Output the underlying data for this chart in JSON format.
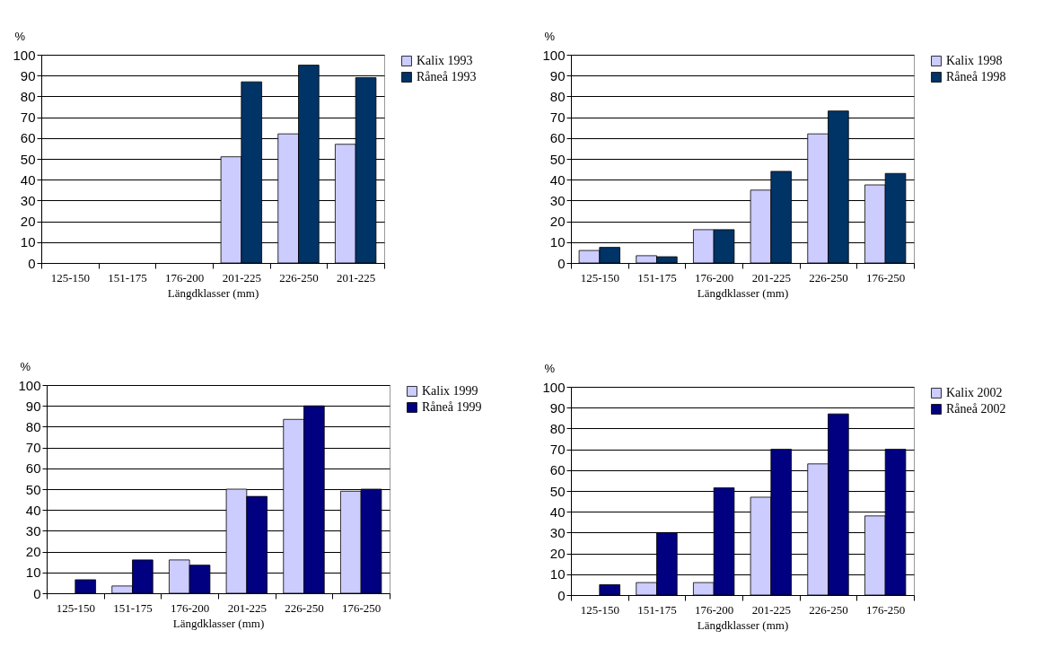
{
  "chart_data": [
    {
      "type": "bar",
      "ylabel": "%",
      "xlabel": "Längdklasser (mm)",
      "categories": [
        "125-150",
        "151-175",
        "176-200",
        "201-225",
        "226-250",
        "201-225"
      ],
      "ylim": [
        0,
        100
      ],
      "yticks": [
        0,
        10,
        20,
        30,
        40,
        50,
        60,
        70,
        80,
        90,
        100
      ],
      "grid": "y",
      "legend": "right",
      "series": [
        {
          "name": "Kalix 1993",
          "color": "#ccccff",
          "values": [
            0,
            0,
            0,
            51,
            62,
            57
          ]
        },
        {
          "name": "Råneå 1993",
          "color": "#003366",
          "values": [
            0,
            0,
            0,
            87,
            95,
            89
          ]
        }
      ]
    },
    {
      "type": "bar",
      "ylabel": "%",
      "xlabel": "Längdklasser (mm)",
      "categories": [
        "125-150",
        "151-175",
        "176-200",
        "201-225",
        "226-250",
        "176-250"
      ],
      "ylim": [
        0,
        100
      ],
      "yticks": [
        0,
        10,
        20,
        30,
        40,
        50,
        60,
        70,
        80,
        90,
        100
      ],
      "grid": "y",
      "legend": "right",
      "series": [
        {
          "name": "Kalix 1998",
          "color": "#ccccff",
          "values": [
            6,
            3.5,
            16,
            35,
            62,
            37.5
          ]
        },
        {
          "name": "Råneå 1998",
          "color": "#003366",
          "values": [
            7.5,
            3,
            16,
            44,
            73,
            43
          ]
        }
      ]
    },
    {
      "type": "bar",
      "ylabel": "%",
      "xlabel": "Längdklasser (mm)",
      "categories": [
        "125-150",
        "151-175",
        "176-200",
        "201-225",
        "226-250",
        "176-250"
      ],
      "ylim": [
        0,
        100
      ],
      "yticks": [
        0,
        10,
        20,
        30,
        40,
        50,
        60,
        70,
        80,
        90,
        100
      ],
      "grid": "y",
      "legend": "right",
      "series": [
        {
          "name": "Kalix 1999",
          "color": "#ccccff",
          "values": [
            0,
            3.5,
            16,
            50,
            83.5,
            49
          ]
        },
        {
          "name": "Råneå 1999",
          "color": "#000080",
          "values": [
            6.5,
            16,
            13.5,
            46.5,
            90,
            50
          ]
        }
      ]
    },
    {
      "type": "bar",
      "ylabel": "%",
      "xlabel": "Längdklasser (mm)",
      "categories": [
        "125-150",
        "151-175",
        "176-200",
        "201-225",
        "226-250",
        "176-250"
      ],
      "ylim": [
        0,
        100
      ],
      "yticks": [
        0,
        10,
        20,
        30,
        40,
        50,
        60,
        70,
        80,
        90,
        100
      ],
      "grid": "y",
      "legend": "right",
      "series": [
        {
          "name": "Kalix 2002",
          "color": "#ccccff",
          "values": [
            0,
            6,
            6,
            47,
            63,
            38
          ]
        },
        {
          "name": "Råneå 2002",
          "color": "#000080",
          "values": [
            5,
            30,
            51.5,
            70,
            87,
            70
          ]
        }
      ]
    }
  ]
}
